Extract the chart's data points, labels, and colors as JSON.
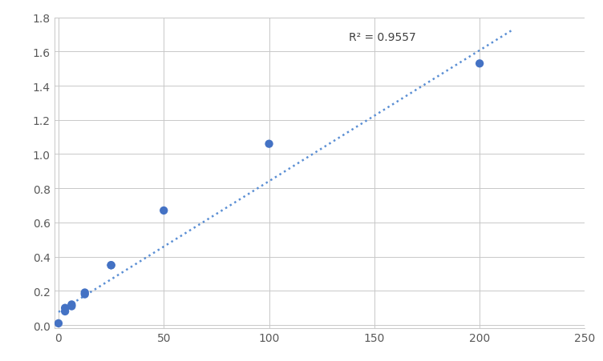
{
  "x": [
    0,
    3.125,
    3.125,
    6.25,
    6.25,
    12.5,
    12.5,
    25,
    25,
    50,
    100,
    200
  ],
  "y": [
    0.01,
    0.08,
    0.1,
    0.11,
    0.12,
    0.18,
    0.19,
    0.35,
    0.35,
    0.67,
    1.06,
    1.53
  ],
  "trendline_x_start": 0,
  "trendline_x_end": 215,
  "r_squared": "R² = 0.9557",
  "r_squared_x": 138,
  "r_squared_y": 1.72,
  "xlim": [
    -2,
    250
  ],
  "ylim": [
    -0.02,
    1.8
  ],
  "xticks": [
    0,
    50,
    100,
    150,
    200,
    250
  ],
  "yticks": [
    0,
    0.2,
    0.4,
    0.6,
    0.8,
    1.0,
    1.2,
    1.4,
    1.6,
    1.8
  ],
  "dot_color": "#4472C4",
  "line_color": "#5B8FD4",
  "background_color": "#ffffff",
  "grid_color": "#c8c8c8",
  "marker_size": 55,
  "line_width": 1.8,
  "slope": 0.007655,
  "intercept": 0.076
}
